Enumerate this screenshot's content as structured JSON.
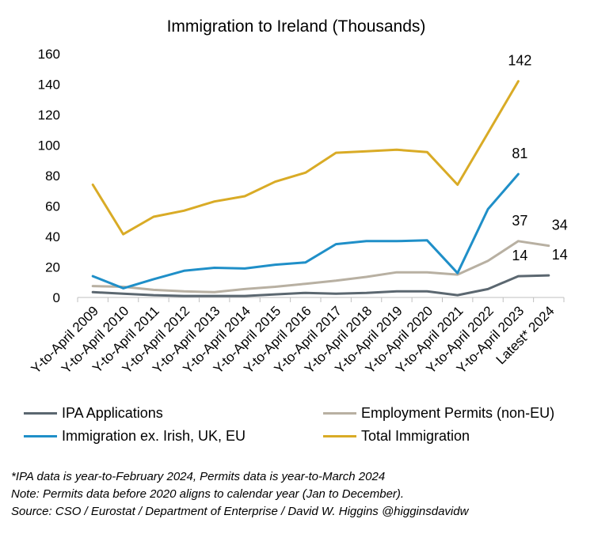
{
  "chart_data": {
    "type": "line",
    "title": "Immigration to Ireland (Thousands)",
    "xlabel": "",
    "ylabel": "",
    "ylim": [
      0,
      160
    ],
    "yticks": [
      0,
      20,
      40,
      60,
      80,
      100,
      120,
      140,
      160
    ],
    "categories": [
      "Y-to-April 2009",
      "Y-to-April 2010",
      "Y-to-April 2011",
      "Y-to-April 2012",
      "Y-to-April 2013",
      "Y-to-April 2014",
      "Y-to-April 2015",
      "Y-to-April 2016",
      "Y-to-April 2017",
      "Y-to-April 2018",
      "Y-to-April 2019",
      "Y-to-April 2020",
      "Y-to-April 2021",
      "Y-to-April 2022",
      "Y-to-April 2023",
      "Latest* 2024"
    ],
    "series": [
      {
        "name": "IPA Applications",
        "color": "#5b6770",
        "values": [
          3.5,
          2.5,
          1.5,
          1,
          1,
          1,
          2,
          3,
          2.5,
          3,
          4,
          4,
          1.5,
          5.5,
          14,
          14.5
        ],
        "labels": [
          {
            "index": 14,
            "text": "14"
          },
          {
            "index": 15,
            "text": "14"
          }
        ]
      },
      {
        "name": "Employment Permits (non-EU)",
        "color": "#b8b0a2",
        "values": [
          7.5,
          7,
          5,
          4,
          3.5,
          5.5,
          7,
          9,
          11,
          13.5,
          16.5,
          16.5,
          15,
          24,
          37,
          34
        ],
        "labels": [
          {
            "index": 14,
            "text": "37"
          },
          {
            "index": 15,
            "text": "34"
          }
        ]
      },
      {
        "name": "Immigration ex. Irish, UK, EU",
        "color": "#1f8fc8",
        "values": [
          14,
          6,
          12,
          17.5,
          19.5,
          19,
          21.5,
          23,
          35,
          37,
          37,
          37.5,
          16,
          58,
          81,
          null
        ],
        "labels": [
          {
            "index": 14,
            "text": "81"
          }
        ]
      },
      {
        "name": "Total Immigration",
        "color": "#d9ab26",
        "values": [
          74,
          41.5,
          53,
          57,
          63,
          66.5,
          76,
          82,
          95,
          96,
          97,
          95.5,
          74,
          108,
          142,
          null
        ],
        "labels": [
          {
            "index": 14,
            "text": "142"
          }
        ]
      }
    ]
  },
  "notes": [
    "*IPA data is year-to-February 2024, Permits data is year-to-March 2024",
    "Note: Permits data before 2020 aligns to calendar year (Jan to December).",
    "Source: CSO / Eurostat / Department of Enterprise / David W. Higgins @higginsdavidw"
  ]
}
